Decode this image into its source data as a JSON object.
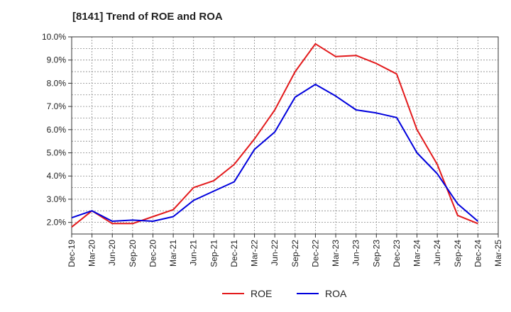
{
  "chart_data": {
    "type": "line",
    "title": "[8141]  Trend of ROE and ROA",
    "xlabel": "",
    "ylabel": "",
    "x": [
      "Dec-19",
      "Mar-20",
      "Jun-20",
      "Sep-20",
      "Dec-20",
      "Mar-21",
      "Jun-21",
      "Sep-21",
      "Dec-21",
      "Mar-22",
      "Jun-22",
      "Sep-22",
      "Dec-22",
      "Mar-23",
      "Jun-23",
      "Sep-23",
      "Dec-23",
      "Mar-24",
      "Jun-24",
      "Sep-24",
      "Dec-24",
      "Mar-25"
    ],
    "ylim": [
      1.5,
      10.0
    ],
    "yticks": [
      "10.0%",
      "9.0%",
      "8.0%",
      "7.0%",
      "6.0%",
      "5.0%",
      "4.0%",
      "3.0%",
      "2.0%"
    ],
    "ytick_values": [
      10.0,
      9.0,
      8.0,
      7.0,
      6.0,
      5.0,
      4.0,
      3.0,
      2.0
    ],
    "grid": true,
    "legend_position": "bottom-center",
    "series": [
      {
        "name": "ROE",
        "color": "#e31a1c",
        "values": [
          1.8,
          2.5,
          1.95,
          1.95,
          2.25,
          2.55,
          3.5,
          3.8,
          4.5,
          5.6,
          6.85,
          8.5,
          9.7,
          9.15,
          9.2,
          8.85,
          8.4,
          6.0,
          4.5,
          2.3,
          1.95,
          null
        ]
      },
      {
        "name": "ROA",
        "color": "#0000dd",
        "values": [
          2.2,
          2.5,
          2.05,
          2.1,
          2.05,
          2.25,
          2.95,
          3.35,
          3.75,
          5.15,
          5.9,
          7.4,
          7.95,
          7.45,
          6.85,
          6.72,
          6.52,
          5.0,
          4.1,
          2.8,
          2.05,
          null
        ]
      }
    ]
  }
}
